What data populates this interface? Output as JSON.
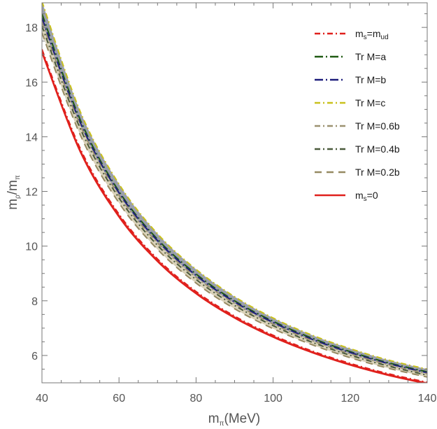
{
  "chart_data": {
    "type": "line",
    "title": "",
    "xlabel": {
      "main": "m",
      "sub": "π",
      "tail": "(MeV)"
    },
    "ylabel": {
      "main": "m",
      "sub1": "ρ",
      "mid": "/m",
      "sub2": "π"
    },
    "xlim": [
      40,
      140
    ],
    "ylim": [
      5.0,
      18.9
    ],
    "x_ticks": [
      40,
      60,
      80,
      100,
      120,
      140
    ],
    "y_ticks": [
      6,
      8,
      10,
      12,
      14,
      16,
      18
    ],
    "grid": false,
    "legend_position": "top-right",
    "x": [
      40,
      50,
      60,
      70,
      80,
      90,
      100,
      110,
      120,
      130,
      140
    ],
    "series": [
      {
        "name": "Tr M=c",
        "label_main": "Tr M=c",
        "color": "#c9c11d",
        "style": "dash-dot",
        "values": [
          18.95,
          14.9,
          12.27,
          10.45,
          9.15,
          8.15,
          7.37,
          6.75,
          6.25,
          5.83,
          5.5
        ]
      },
      {
        "name": "Tr M=a",
        "label_main": "Tr M=a",
        "color": "#1f5a12",
        "style": "long-dash-dot",
        "values": [
          18.5,
          14.6,
          12.0,
          10.25,
          8.98,
          8.0,
          7.25,
          6.64,
          6.14,
          5.73,
          5.4
        ]
      },
      {
        "name": "Tr M=b",
        "label_main": "Tr M=b",
        "color": "#1c1c7a",
        "style": "long-dash-dot",
        "values": [
          18.35,
          14.5,
          11.95,
          10.2,
          8.93,
          7.96,
          7.21,
          6.6,
          6.11,
          5.7,
          5.37
        ]
      },
      {
        "name": "Tr M=0.6b",
        "label_main": "Tr M=0.6b",
        "color": "#9c9170",
        "style": "dash-dot",
        "values": [
          18.2,
          14.4,
          11.86,
          10.12,
          8.86,
          7.9,
          7.15,
          6.55,
          6.06,
          5.66,
          5.33
        ]
      },
      {
        "name": "Tr M=0.4b",
        "label_main": "Tr M=0.4b",
        "color": "#4a5a3c",
        "style": "dash-dot",
        "values": [
          18.05,
          14.28,
          11.76,
          10.03,
          8.78,
          7.83,
          7.09,
          6.49,
          6.01,
          5.61,
          5.28
        ]
      },
      {
        "name": "Tr M=0.2b",
        "label_main": "Tr M=0.2b",
        "color": "#968a62",
        "style": "dash",
        "values": [
          17.8,
          14.05,
          11.58,
          9.88,
          8.65,
          7.71,
          6.98,
          6.4,
          5.92,
          5.53,
          5.21
        ]
      },
      {
        "name": "m_s=m_ud",
        "label_main": "m",
        "label_sub1": "s",
        "label_mid": "=m",
        "label_sub2": "ud",
        "color": "#e0201c",
        "style": "dash-dot",
        "values": [
          17.2,
          13.55,
          11.17,
          9.53,
          8.34,
          7.44,
          6.74,
          6.17,
          5.71,
          5.33,
          5.02
        ]
      },
      {
        "name": "m_s=0",
        "label_main": "m",
        "label_sub1": "s",
        "label_mid": "=0",
        "label_sub2": "",
        "color": "#e0201c",
        "style": "solid",
        "values": [
          17.1,
          13.45,
          11.08,
          9.45,
          8.27,
          7.38,
          6.68,
          6.12,
          5.66,
          5.28,
          4.97
        ]
      }
    ],
    "legend_order": [
      "m_s=m_ud",
      "Tr M=a",
      "Tr M=b",
      "Tr M=c",
      "Tr M=0.6b",
      "Tr M=0.4b",
      "Tr M=0.2b",
      "m_s=0"
    ]
  }
}
